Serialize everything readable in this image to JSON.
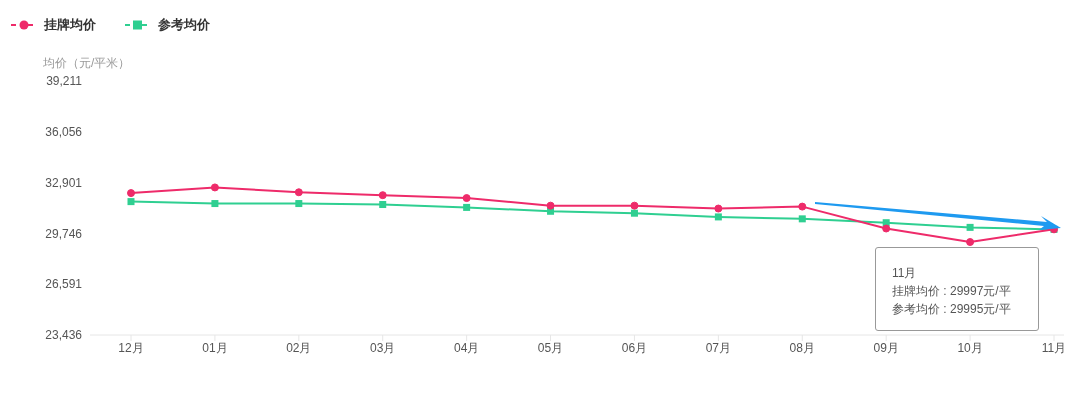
{
  "chart_data": {
    "type": "line",
    "ylabel": "均价（元/平米）",
    "categories": [
      "12月",
      "01月",
      "02月",
      "03月",
      "04月",
      "05月",
      "06月",
      "07月",
      "08月",
      "09月",
      "10月",
      "11月"
    ],
    "series": [
      {
        "name": "挂牌均价",
        "color": "#ee2b6a",
        "marker": "circle",
        "values": [
          32250,
          32600,
          32300,
          32120,
          31940,
          31470,
          31470,
          31290,
          31410,
          30050,
          29210,
          29997
        ]
      },
      {
        "name": "参考均价",
        "color": "#2fcf91",
        "marker": "square",
        "values": [
          31720,
          31600,
          31600,
          31540,
          31360,
          31120,
          31000,
          30770,
          30650,
          30410,
          30120,
          29995
        ]
      }
    ],
    "ylim": [
      23436,
      39211
    ],
    "yticks": [
      {
        "value": 23436,
        "label": "23,436"
      },
      {
        "value": 26591,
        "label": "26,591"
      },
      {
        "value": 29746,
        "label": "29,746"
      },
      {
        "value": 32901,
        "label": "32,901"
      },
      {
        "value": 36056,
        "label": "36,056"
      },
      {
        "value": 39211,
        "label": "39,211"
      }
    ],
    "grid": false,
    "legend": "top left",
    "annotations": [
      "11月",
      "挂牌均价 : 29997元/平",
      "参考均价 : 29995元/平"
    ]
  }
}
